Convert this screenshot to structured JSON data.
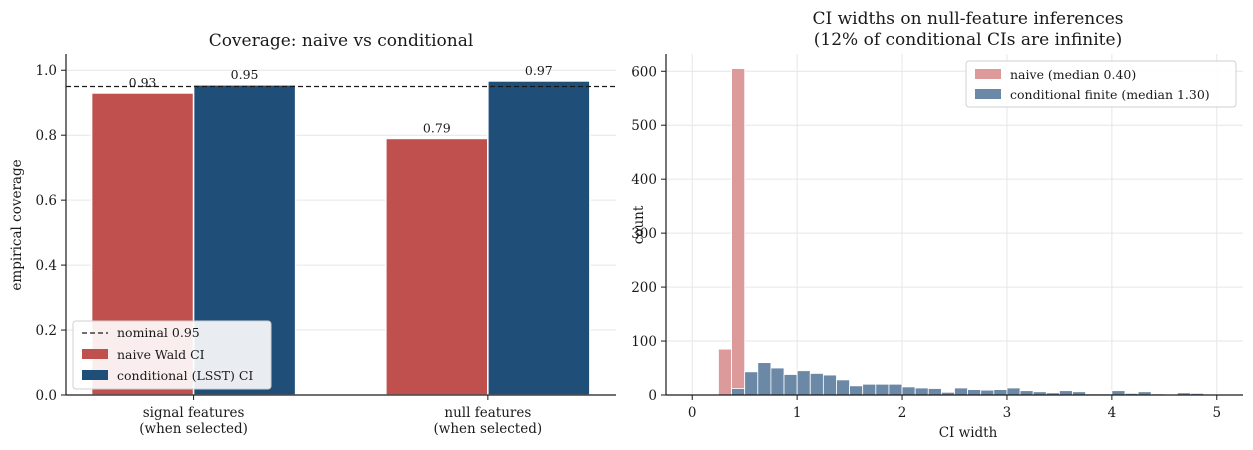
{
  "chart_data": [
    {
      "type": "bar",
      "title": "Coverage: naive vs conditional",
      "xlabel": "",
      "ylabel": "empirical coverage",
      "ylim": [
        0,
        1.05
      ],
      "yticks": [
        "0.0",
        "0.2",
        "0.4",
        "0.6",
        "0.8",
        "1.0"
      ],
      "categories": [
        "signal features\n(when selected)",
        "null features\n(when selected)"
      ],
      "series": [
        {
          "name": "naive Wald CI",
          "color": "#c0504d",
          "values": [
            0.93,
            0.79
          ],
          "labels": [
            "0.93",
            "0.79"
          ]
        },
        {
          "name": "conditional (LSST) CI",
          "color": "#1f4e79",
          "values": [
            0.955,
            0.967
          ],
          "labels": [
            "0.95",
            "0.97"
          ]
        }
      ],
      "reference_line": {
        "value": 0.95,
        "label": "nominal 0.95",
        "style": "dashed"
      },
      "legend": "lower-left",
      "grid": true
    },
    {
      "type": "histogram",
      "title": "CI widths on null-feature inferences\n(12% of conditional CIs are infinite)",
      "xlabel": "CI width",
      "ylabel": "count",
      "xlim": [
        -0.25,
        5.25
      ],
      "ylim": [
        0,
        632
      ],
      "xticks": [
        "0",
        "1",
        "2",
        "3",
        "4",
        "5"
      ],
      "yticks": [
        "0",
        "100",
        "200",
        "300",
        "400",
        "500",
        "600"
      ],
      "bin_width": 0.125,
      "series": [
        {
          "name": "naive (median 0.40)",
          "color": "#dd9a9a",
          "bins": [
            {
              "x0": 0.25,
              "count": 85
            },
            {
              "x0": 0.375,
              "count": 605
            }
          ]
        },
        {
          "name": "conditional finite (median 1.30)",
          "color": "#6b88a6",
          "bins": [
            {
              "x0": 0.375,
              "count": 12
            },
            {
              "x0": 0.5,
              "count": 43
            },
            {
              "x0": 0.625,
              "count": 60
            },
            {
              "x0": 0.75,
              "count": 50
            },
            {
              "x0": 0.875,
              "count": 38
            },
            {
              "x0": 1.0,
              "count": 45
            },
            {
              "x0": 1.125,
              "count": 40
            },
            {
              "x0": 1.25,
              "count": 37
            },
            {
              "x0": 1.375,
              "count": 28
            },
            {
              "x0": 1.5,
              "count": 17
            },
            {
              "x0": 1.625,
              "count": 20
            },
            {
              "x0": 1.75,
              "count": 20
            },
            {
              "x0": 1.875,
              "count": 20
            },
            {
              "x0": 2.0,
              "count": 15
            },
            {
              "x0": 2.125,
              "count": 13
            },
            {
              "x0": 2.25,
              "count": 12
            },
            {
              "x0": 2.375,
              "count": 5
            },
            {
              "x0": 2.5,
              "count": 13
            },
            {
              "x0": 2.625,
              "count": 10
            },
            {
              "x0": 2.75,
              "count": 9
            },
            {
              "x0": 2.875,
              "count": 10
            },
            {
              "x0": 3.0,
              "count": 13
            },
            {
              "x0": 3.125,
              "count": 8
            },
            {
              "x0": 3.25,
              "count": 6
            },
            {
              "x0": 3.375,
              "count": 4
            },
            {
              "x0": 3.5,
              "count": 8
            },
            {
              "x0": 3.625,
              "count": 6
            },
            {
              "x0": 3.75,
              "count": 2
            },
            {
              "x0": 3.875,
              "count": 2
            },
            {
              "x0": 4.0,
              "count": 8
            },
            {
              "x0": 4.125,
              "count": 3
            },
            {
              "x0": 4.25,
              "count": 6
            },
            {
              "x0": 4.375,
              "count": 2
            },
            {
              "x0": 4.5,
              "count": 1
            },
            {
              "x0": 4.625,
              "count": 4
            },
            {
              "x0": 4.75,
              "count": 3
            },
            {
              "x0": 4.875,
              "count": 1
            }
          ]
        }
      ],
      "legend": "upper-right",
      "grid": true
    }
  ]
}
